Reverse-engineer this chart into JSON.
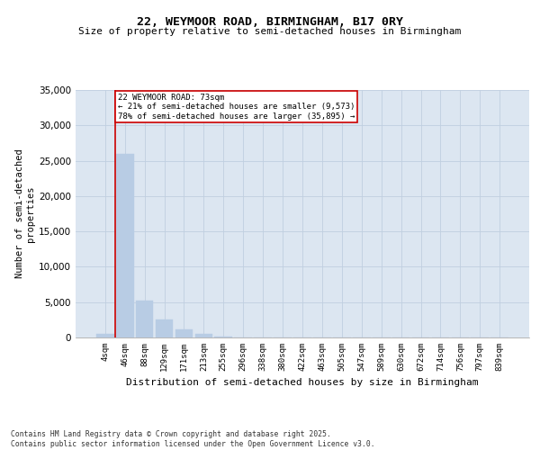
{
  "title1": "22, WEYMOOR ROAD, BIRMINGHAM, B17 0RY",
  "title2": "Size of property relative to semi-detached houses in Birmingham",
  "xlabel": "Distribution of semi-detached houses by size in Birmingham",
  "ylabel": "Number of semi-detached\nproperties",
  "categories": [
    "4sqm",
    "46sqm",
    "88sqm",
    "129sqm",
    "171sqm",
    "213sqm",
    "255sqm",
    "296sqm",
    "338sqm",
    "380sqm",
    "422sqm",
    "463sqm",
    "505sqm",
    "547sqm",
    "589sqm",
    "630sqm",
    "672sqm",
    "714sqm",
    "756sqm",
    "797sqm",
    "839sqm"
  ],
  "bar_values": [
    500,
    26000,
    5200,
    2600,
    1200,
    500,
    100,
    0,
    0,
    0,
    0,
    0,
    0,
    0,
    0,
    0,
    0,
    0,
    0,
    0,
    0
  ],
  "bar_color": "#b8cce4",
  "bar_edge_color": "#b8cce4",
  "grid_color": "#c0cfe0",
  "background_color": "#dce6f1",
  "vline_x_index": 1,
  "vline_color": "#cc0000",
  "annotation_text": "22 WEYMOOR ROAD: 73sqm\n← 21% of semi-detached houses are smaller (9,573)\n78% of semi-detached houses are larger (35,895) →",
  "annotation_box_color": "#ffffff",
  "annotation_border_color": "#cc0000",
  "footer_text": "Contains HM Land Registry data © Crown copyright and database right 2025.\nContains public sector information licensed under the Open Government Licence v3.0.",
  "ylim": [
    0,
    35000
  ],
  "yticks": [
    0,
    5000,
    10000,
    15000,
    20000,
    25000,
    30000,
    35000
  ]
}
